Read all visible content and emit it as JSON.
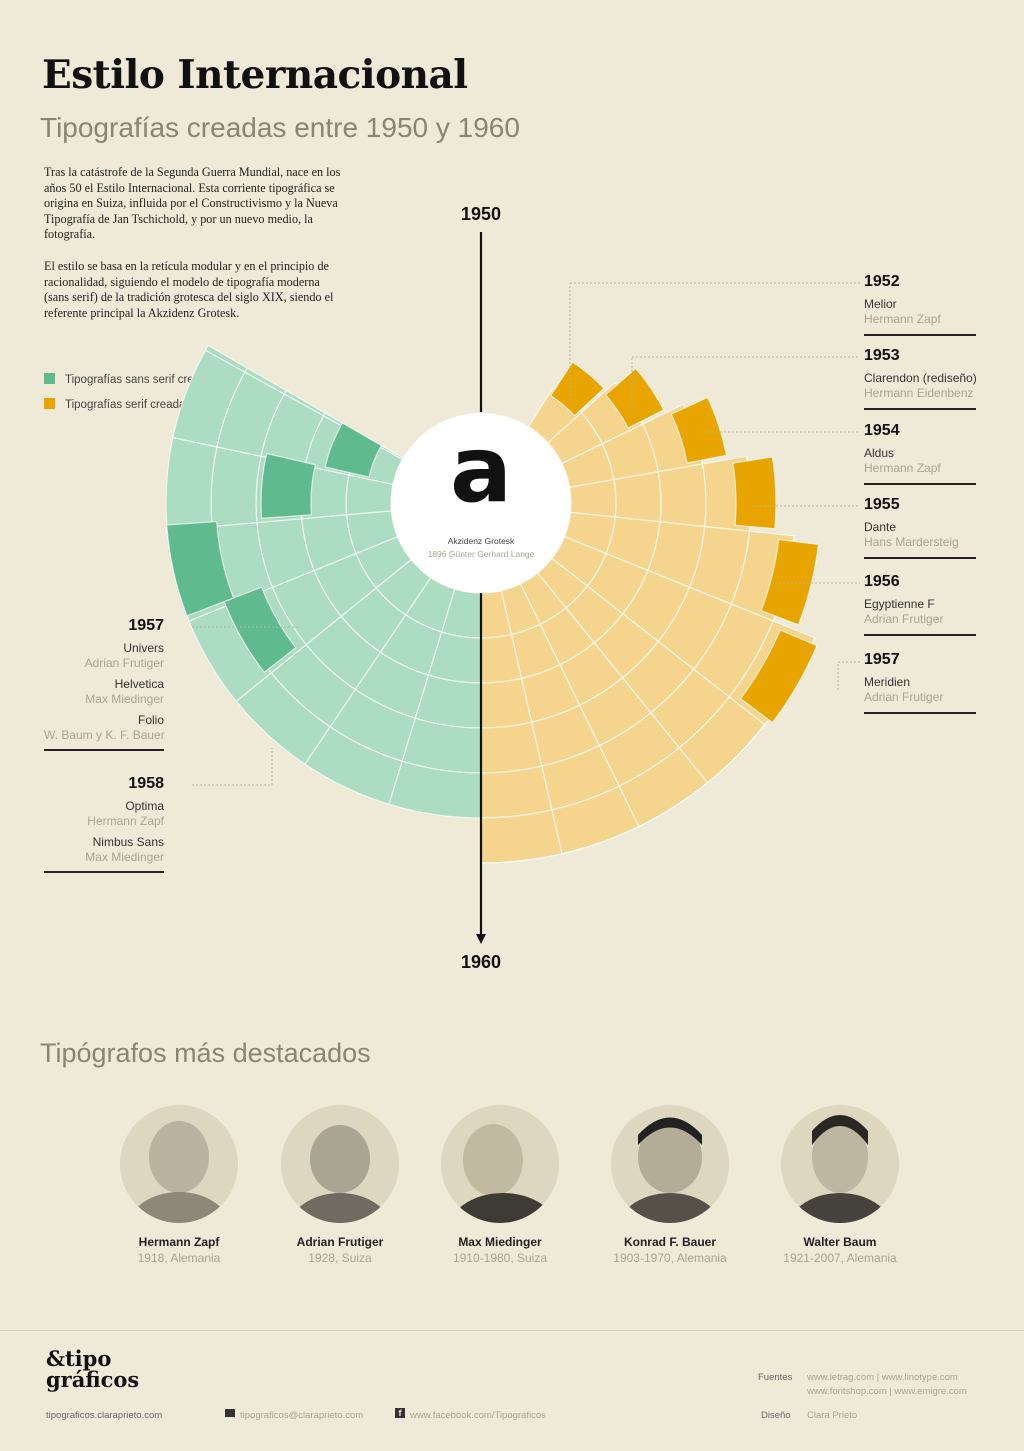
{
  "header": {
    "title": "Estilo Internacional",
    "subtitle": "Tipografías creadas entre 1950 y 1960"
  },
  "intro": {
    "paragraph1": "Tras la catástrofe de la Segunda Guerra Mundial, nace en los años 50 el Estilo Internacional. Esta corriente tipográfica se origina en Suiza, influida por el Constructivismo y la Nueva Tipografía de Jan Tschichold, y por un nuevo medio, la fotografía.",
    "paragraph2": "El estilo se basa en la retícula modular y en el principio de racionalidad, siguiendo el modelo de tipografía moderna (sans serif) de la tradición grotesca del siglo XIX, siendo el referente principal la Akzidenz Grotesk."
  },
  "legend": {
    "sans": {
      "label": "Tipografías sans serif creada ese año",
      "color": "#5fba8e"
    },
    "serif": {
      "label": "Tipografías serif creada ese año",
      "color": "#e8a500"
    }
  },
  "timeline": {
    "start_label": "1950",
    "end_label": "1960"
  },
  "center": {
    "glyph": "a",
    "name": "Akzidenz Grotesk",
    "info": "1896 Günter Gerhard Lange"
  },
  "colors": {
    "serif_light": "#f5d48e",
    "serif_dark": "#e8a500",
    "sans_light": "#acdcc2",
    "sans_dark": "#5fba8e",
    "background": "#efe9d8"
  },
  "serif_fonts": [
    {
      "year": "1952",
      "name": "Melior",
      "author": "Hermann Zapf"
    },
    {
      "year": "1953",
      "name": "Clarendon (rediseño)",
      "author": "Hermann Eidenbenz"
    },
    {
      "year": "1954",
      "name": "Aldus",
      "author": "Hermann Zapf"
    },
    {
      "year": "1955",
      "name": "Dante",
      "author": "Hans Mardersteig"
    },
    {
      "year": "1956",
      "name": "Egyptienne F",
      "author": "Adrian Frutiger"
    },
    {
      "year": "1957",
      "name": "Meridien",
      "author": "Adrian Frutiger"
    }
  ],
  "sans_fonts": {
    "y1957": {
      "year": "1957",
      "items": [
        {
          "name": "Univers",
          "author": "Adrian Frutiger"
        },
        {
          "name": "Helvetica",
          "author": "Max Miedinger"
        },
        {
          "name": "Folio",
          "author": "W. Baum y K. F. Bauer"
        }
      ]
    },
    "y1958": {
      "year": "1958",
      "items": [
        {
          "name": "Optima",
          "author": "Hermann Zapf"
        },
        {
          "name": "Nimbus Sans",
          "author": "Max Miedinger"
        }
      ]
    }
  },
  "designers": {
    "title": "Tipógrafos más destacados",
    "people": [
      {
        "name": "Hermann Zapf",
        "info": "1918, Alemania"
      },
      {
        "name": "Adrian Frutiger",
        "info": "1928, Suiza"
      },
      {
        "name": "Max Miedinger",
        "info": "1910-1980, Suiza"
      },
      {
        "name": "Konrad F. Bauer",
        "info": "1903-1970, Alemania"
      },
      {
        "name": "Walter Baum",
        "info": "1921-2007, Alemania"
      }
    ]
  },
  "footer": {
    "logo_line1": "&tipo",
    "logo_line2": "gráficos",
    "site": "tipograficos.claraprieto.com",
    "email": "tipograficos@claraprieto.com",
    "facebook": "www.facebook.com/Tipograficos",
    "sources_label": "Fuentes",
    "sources_line1": "www.letrag.com | www.linotype.com",
    "sources_line2": "www.fontshop.com | www.emigre.com",
    "design_label": "Diseño",
    "designer": "Clara Prieto"
  }
}
